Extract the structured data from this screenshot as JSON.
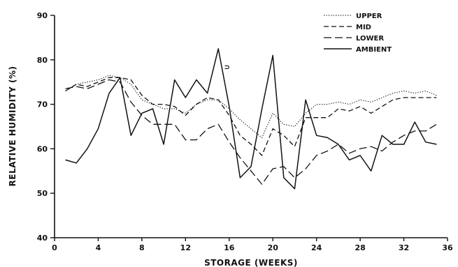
{
  "chart_data": {
    "type": "line",
    "xlabel": "STORAGE (WEEKS)",
    "ylabel": "RELATIVE HUMIDITY (%)",
    "xlim": [
      0,
      36
    ],
    "ylim": [
      40,
      90
    ],
    "xticks": [
      0,
      4,
      8,
      12,
      16,
      20,
      24,
      28,
      32,
      36
    ],
    "yticks": [
      40,
      50,
      60,
      70,
      80,
      90
    ],
    "grid": false,
    "legend_position": "top-right",
    "annotations": [
      {
        "text": "⊃",
        "x": 15.8,
        "y": 78.5
      }
    ],
    "series": [
      {
        "name": "UPPER",
        "style": "dotted",
        "x": [
          1,
          2,
          3,
          4,
          5,
          6,
          7,
          8,
          9,
          10,
          11,
          12,
          13,
          14,
          15,
          16,
          17,
          18,
          19,
          20,
          21,
          22,
          23,
          24,
          25,
          26,
          27,
          28,
          29,
          30,
          31,
          32,
          33,
          34,
          35
        ],
        "values": [
          73,
          74.5,
          75,
          75.5,
          76.5,
          76,
          74.5,
          71,
          70,
          69,
          69,
          68,
          70,
          71,
          71,
          69,
          66.5,
          64.5,
          62.5,
          68,
          65.5,
          65,
          68,
          70,
          70,
          70.5,
          70,
          71,
          70.5,
          71.5,
          72.5,
          73,
          72.5,
          73,
          72
        ]
      },
      {
        "name": "MID",
        "style": "dashed",
        "x": [
          1,
          2,
          3,
          4,
          5,
          6,
          7,
          8,
          9,
          10,
          11,
          12,
          13,
          14,
          15,
          16,
          17,
          18,
          19,
          20,
          21,
          22,
          23,
          24,
          25,
          26,
          27,
          28,
          29,
          30,
          31,
          32,
          33,
          34,
          35
        ],
        "values": [
          73,
          74.5,
          74,
          75,
          76,
          76,
          75.5,
          72,
          70,
          70,
          69.5,
          67.5,
          70,
          71.5,
          71,
          67.5,
          63,
          61,
          58.5,
          64.5,
          63,
          60.5,
          67,
          67,
          67,
          69,
          68.5,
          69.5,
          68,
          69.5,
          71,
          71.5,
          71.5,
          71.5,
          71.5
        ]
      },
      {
        "name": "LOWER",
        "style": "long-dash",
        "x": [
          1,
          2,
          3,
          4,
          5,
          6,
          7,
          8,
          9,
          10,
          11,
          12,
          13,
          14,
          15,
          16,
          17,
          18,
          19,
          20,
          21,
          22,
          23,
          24,
          25,
          26,
          27,
          28,
          29,
          30,
          31,
          32,
          33,
          34,
          35
        ],
        "values": [
          73.5,
          74,
          73.5,
          74.5,
          75.5,
          75,
          70.5,
          67.5,
          65.5,
          65.5,
          65.5,
          62,
          62,
          64.5,
          65.5,
          61.5,
          58,
          55,
          52,
          55.5,
          56,
          53.5,
          55.5,
          58.5,
          59.5,
          61,
          59,
          60,
          60.5,
          59.5,
          61.5,
          63,
          64,
          64,
          65.5
        ]
      },
      {
        "name": "AMBIENT",
        "style": "solid",
        "x": [
          1,
          2,
          3,
          4,
          5,
          6,
          7,
          8,
          9,
          10,
          11,
          12,
          13,
          14,
          15,
          16,
          17,
          18,
          19,
          20,
          21,
          22,
          23,
          24,
          25,
          26,
          27,
          28,
          29,
          30,
          31,
          32,
          33,
          34,
          35
        ],
        "values": [
          57.5,
          56.8,
          60,
          64.5,
          72.5,
          76,
          63,
          68,
          69,
          61,
          75.5,
          71.5,
          75.5,
          72.5,
          82.5,
          69.5,
          53.5,
          56,
          69,
          81,
          53.5,
          51,
          71,
          63,
          62.5,
          61,
          57.5,
          58.5,
          55,
          63,
          61,
          61,
          66,
          61.5,
          61
        ]
      }
    ]
  }
}
